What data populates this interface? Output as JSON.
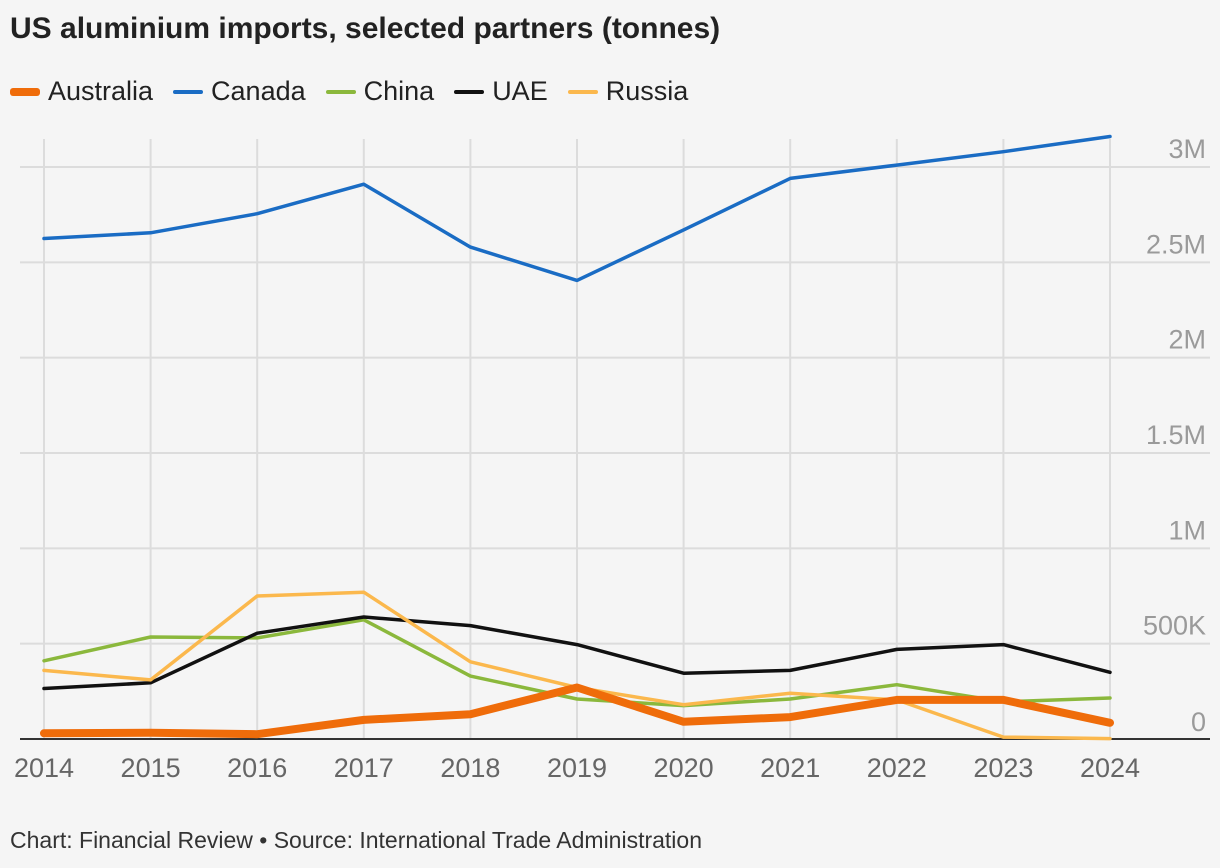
{
  "title": "US aluminium imports, selected partners (tonnes)",
  "source": "Chart: Financial Review • Source: International Trade Administration",
  "chart_data": {
    "type": "line",
    "title": "US aluminium imports, selected partners (tonnes)",
    "xlabel": "",
    "ylabel": "",
    "x": [
      "2014",
      "2015",
      "2016",
      "2017",
      "2018",
      "2019",
      "2020",
      "2021",
      "2022",
      "2023",
      "2024"
    ],
    "ylim": [
      0,
      3000000
    ],
    "yticks": [
      0,
      500000,
      1000000,
      1500000,
      2000000,
      2500000,
      3000000
    ],
    "ytick_labels": [
      "0",
      "500K",
      "1M",
      "1.5M",
      "2M",
      "2.5M",
      "3M"
    ],
    "grid": true,
    "legend_position": "top-left",
    "series": [
      {
        "name": "Canada",
        "color": "#1a6cc4",
        "values": [
          2625000,
          2655000,
          2755000,
          2910000,
          2580000,
          2405000,
          2670000,
          2940000,
          3010000,
          3080000,
          3160000
        ]
      },
      {
        "name": "China",
        "color": "#8bb83c",
        "values": [
          410000,
          535000,
          530000,
          625000,
          330000,
          210000,
          175000,
          210000,
          285000,
          195000,
          215000
        ]
      },
      {
        "name": "UAE",
        "color": "#111111",
        "values": [
          265000,
          295000,
          555000,
          640000,
          595000,
          495000,
          345000,
          360000,
          470000,
          495000,
          350000
        ]
      },
      {
        "name": "Russia",
        "color": "#fbb84d",
        "values": [
          360000,
          310000,
          750000,
          770000,
          405000,
          270000,
          180000,
          240000,
          205000,
          10000,
          2000
        ]
      },
      {
        "name": "Australia",
        "color": "#ef6c0a",
        "values": [
          30000,
          33000,
          25000,
          100000,
          130000,
          270000,
          90000,
          115000,
          205000,
          205000,
          85000
        ]
      }
    ]
  },
  "legend": [
    {
      "name": "Australia",
      "color": "#ef6c0a"
    },
    {
      "name": "Canada",
      "color": "#1a6cc4"
    },
    {
      "name": "China",
      "color": "#8bb83c"
    },
    {
      "name": "UAE",
      "color": "#111111"
    },
    {
      "name": "Russia",
      "color": "#fbb84d"
    }
  ]
}
